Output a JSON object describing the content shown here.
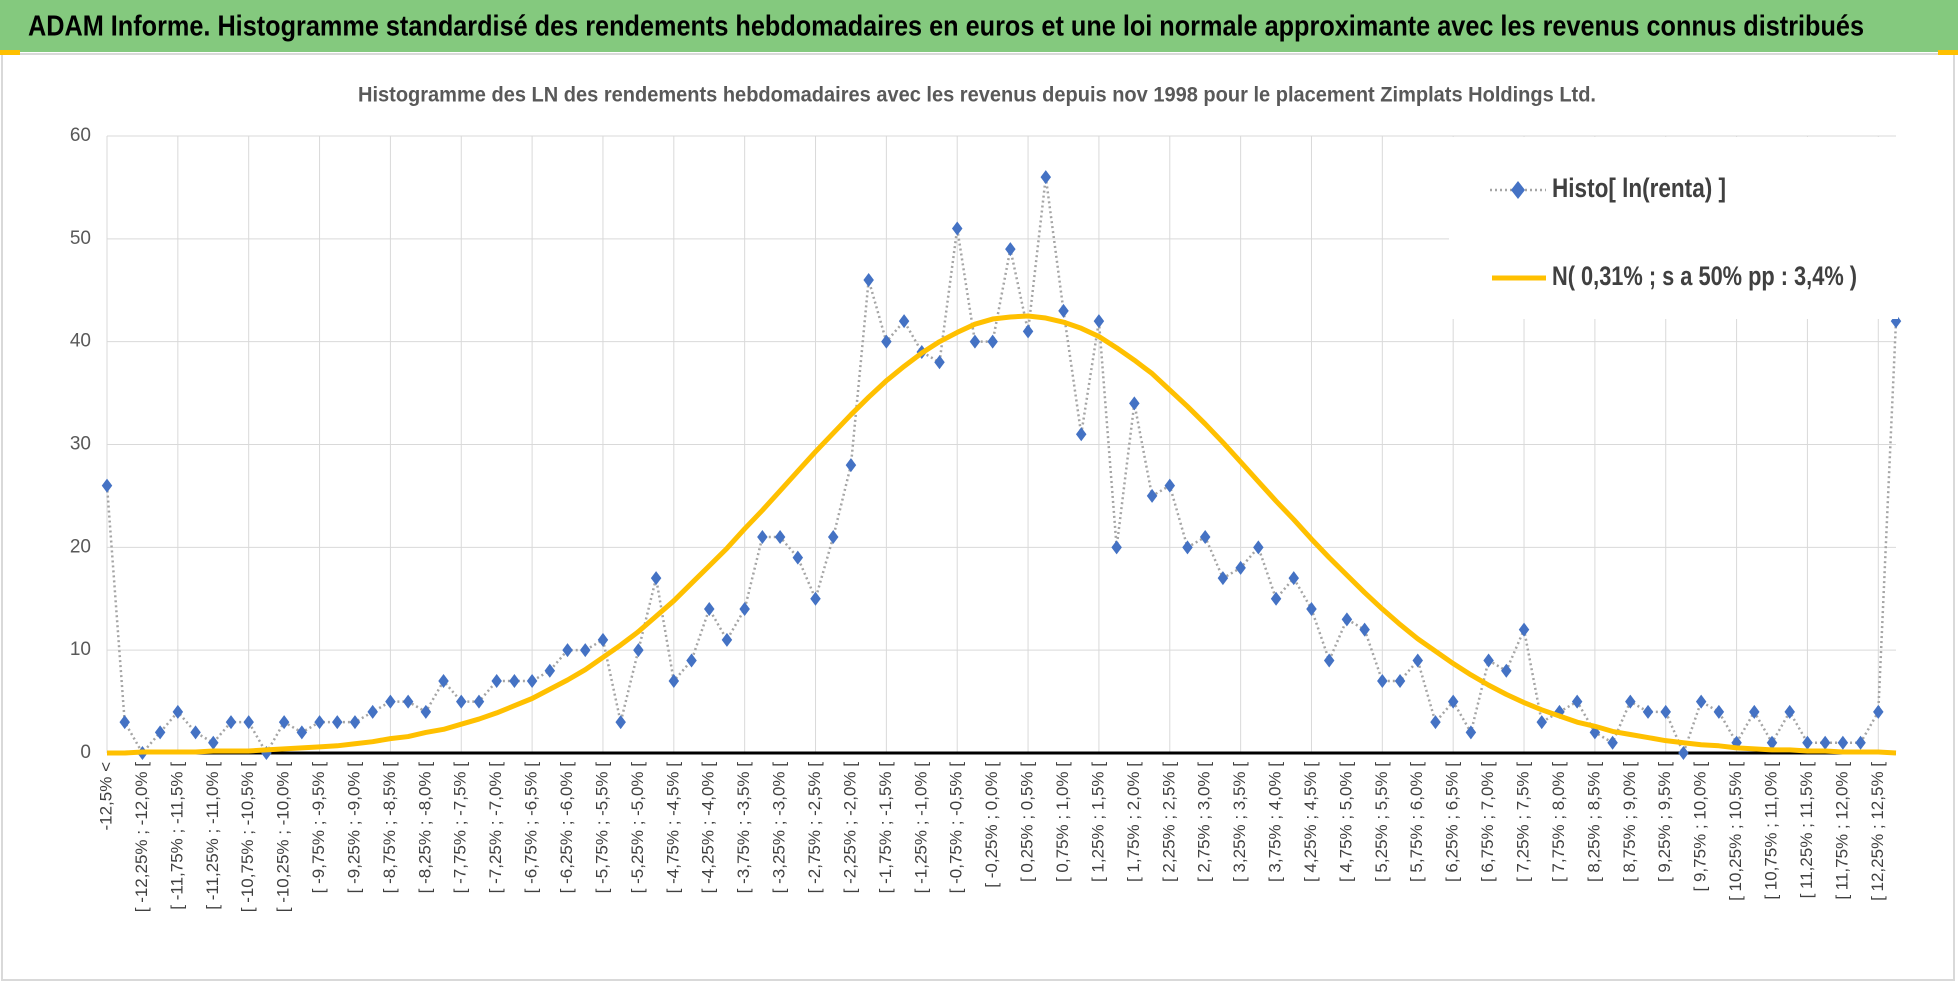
{
  "header": {
    "title": "ADAM Informe. Histogramme standardisé des rendements hebdomadaires en euros et une loi normale approximante avec les revenus connus distribués"
  },
  "chart_data": {
    "type": "line",
    "title": "Histogramme des LN des rendements hebdomadaires avec les revenus depuis nov 1998 pour le placement Zimplats Holdings Ltd.",
    "categories": [
      "-12,5% <",
      null,
      "[ -12,25% ; -12,0% [",
      null,
      "[ -11,75% ; -11,5% [",
      null,
      "[ -11,25% ; -11,0% [",
      null,
      "[ -10,75% ; -10,5% [",
      null,
      "[ -10,25% ; -10,0% [",
      null,
      "[ -9,75% ; -9,5% [",
      null,
      "[ -9,25% ; -9,0% [",
      null,
      "[ -8,75% ; -8,5% [",
      null,
      "[ -8,25% ; -8,0% [",
      null,
      "[ -7,75% ; -7,5% [",
      null,
      "[ -7,25% ; -7,0% [",
      null,
      "[ -6,75% ; -6,5% [",
      null,
      "[ -6,25% ; -6,0% [",
      null,
      "[ -5,75% ; -5,5% [",
      null,
      "[ -5,25% ; -5,0% [",
      null,
      "[ -4,75% ; -4,5% [",
      null,
      "[ -4,25% ; -4,0% [",
      null,
      "[ -3,75% ; -3,5% [",
      null,
      "[ -3,25% ; -3,0% [",
      null,
      "[ -2,75% ; -2,5% [",
      null,
      "[ -2,25% ; -2,0% [",
      null,
      "[ -1,75% ; -1,5% [",
      null,
      "[ -1,25% ; -1,0% [",
      null,
      "[ -0,75% ; -0,5% [",
      null,
      "[ -0,25% ; 0,0% [",
      null,
      "[ 0,25% ; 0,5% [",
      null,
      "[ 0,75% ; 1,0% [",
      null,
      "[ 1,25% ; 1,5% [",
      null,
      "[ 1,75% ; 2,0% [",
      null,
      "[ 2,25% ; 2,5% [",
      null,
      "[ 2,75% ; 3,0% [",
      null,
      "[ 3,25% ; 3,5% [",
      null,
      "[ 3,75% ; 4,0% [",
      null,
      "[ 4,25% ; 4,5% [",
      null,
      "[ 4,75% ; 5,0% [",
      null,
      "[ 5,25% ; 5,5% [",
      null,
      "[ 5,75% ; 6,0% [",
      null,
      "[ 6,25% ; 6,5% [",
      null,
      "[ 6,75% ; 7,0% [",
      null,
      "[ 7,25% ; 7,5% [",
      null,
      "[ 7,75% ; 8,0% [",
      null,
      "[ 8,25% ; 8,5% [",
      null,
      "[ 8,75% ; 9,0% [",
      null,
      "[ 9,25% ; 9,5% [",
      null,
      "[ 9,75% ; 10,0% [",
      null,
      "[ 10,25% ; 10,5% [",
      null,
      "[ 10,75% ; 11,0% [",
      null,
      "[ 11,25% ; 11,5% [",
      null,
      "[ 11,75% ; 12,0% [",
      null,
      "[ 12,25% ; 12,5% [",
      null
    ],
    "series": [
      {
        "name": "Histo[ ln(renta) ]",
        "color": "#4472c4",
        "line_color": "#a5a5a5",
        "marker": "diamond",
        "values": [
          26,
          3,
          0,
          2,
          4,
          2,
          1,
          3,
          3,
          0,
          3,
          2,
          3,
          3,
          3,
          4,
          5,
          5,
          4,
          7,
          5,
          5,
          7,
          7,
          7,
          8,
          10,
          10,
          11,
          3,
          10,
          17,
          7,
          9,
          14,
          11,
          14,
          21,
          21,
          19,
          15,
          21,
          28,
          46,
          40,
          42,
          39,
          38,
          51,
          40,
          40,
          49,
          41,
          56,
          43,
          31,
          42,
          20,
          34,
          25,
          26,
          20,
          21,
          17,
          18,
          20,
          15,
          17,
          14,
          9,
          13,
          12,
          7,
          7,
          9,
          3,
          5,
          2,
          9,
          8,
          12,
          3,
          4,
          5,
          2,
          1,
          5,
          4,
          4,
          0,
          5,
          4,
          1,
          4,
          1,
          4,
          1,
          1,
          1,
          1,
          4,
          42
        ]
      },
      {
        "name": "N( 0,31% ; s a 50% pp : 3,4% )",
        "color": "#ffc000",
        "values": [
          0,
          0,
          0.1,
          0.1,
          0.1,
          0.1,
          0.2,
          0.2,
          0.2,
          0.3,
          0.4,
          0.5,
          0.6,
          0.7,
          0.9,
          1.1,
          1.4,
          1.6,
          2.0,
          2.3,
          2.8,
          3.3,
          3.9,
          4.6,
          5.3,
          6.2,
          7.1,
          8.1,
          9.3,
          10.5,
          11.8,
          13.3,
          14.8,
          16.5,
          18.2,
          19.9,
          21.8,
          23.6,
          25.5,
          27.4,
          29.3,
          31.1,
          32.9,
          34.6,
          36.2,
          37.6,
          38.9,
          40.0,
          40.9,
          41.7,
          42.2,
          42.4,
          42.5,
          42.3,
          41.9,
          41.3,
          40.5,
          39.4,
          38.2,
          36.9,
          35.3,
          33.7,
          32.0,
          30.2,
          28.3,
          26.4,
          24.5,
          22.7,
          20.8,
          19.0,
          17.3,
          15.6,
          14.0,
          12.5,
          11.1,
          9.9,
          8.7,
          7.6,
          6.6,
          5.7,
          4.9,
          4.2,
          3.6,
          3.0,
          2.6,
          2.1,
          1.8,
          1.5,
          1.2,
          1.0,
          0.8,
          0.7,
          0.5,
          0.4,
          0.3,
          0.3,
          0.2,
          0.2,
          0.1,
          0.1,
          0.1,
          0
        ]
      }
    ],
    "ylim": [
      0,
      60
    ],
    "yticks": [
      0,
      10,
      20,
      30,
      40,
      50,
      60
    ],
    "grid": true,
    "legend": "top-right"
  }
}
